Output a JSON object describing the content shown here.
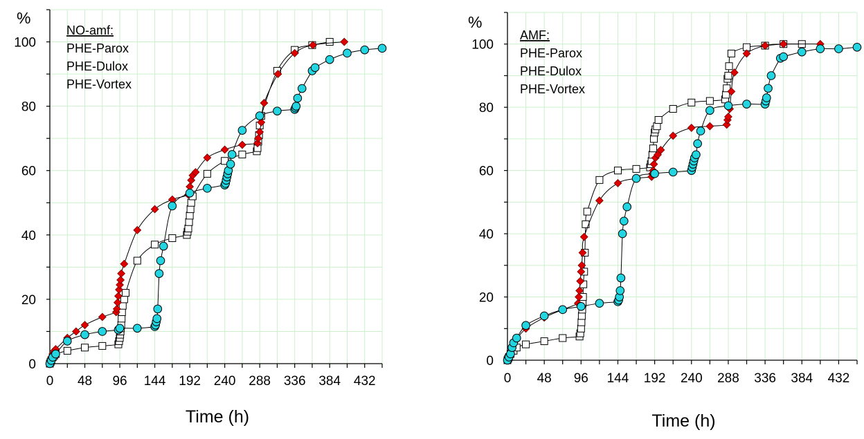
{
  "chart_data": [
    {
      "type": "scatter",
      "title": "",
      "xlabel": "Time (h)",
      "ylabel": "%",
      "xlim": [
        0,
        456
      ],
      "ylim": [
        0,
        110
      ],
      "xticks": [
        0,
        48,
        96,
        144,
        192,
        240,
        288,
        336,
        384,
        432
      ],
      "yticks": [
        0,
        20,
        40,
        60,
        80,
        100
      ],
      "grid": true,
      "grid_color": "#ccf0cc",
      "legend": {
        "placement": "top-left",
        "heading": "NO-amf:",
        "entries": [
          "PHE-Parox",
          "PHE-Dulox",
          "PHE-Vortex"
        ]
      },
      "series": [
        {
          "marker": "open-square",
          "color": "#000000",
          "points": [
            [
              0,
              0
            ],
            [
              1,
              0.5
            ],
            [
              2,
              1
            ],
            [
              4,
              2
            ],
            [
              6,
              2.5
            ],
            [
              8,
              3
            ],
            [
              24,
              4
            ],
            [
              48,
              5
            ],
            [
              72,
              5.5
            ],
            [
              94,
              6
            ],
            [
              95,
              7
            ],
            [
              96,
              8
            ],
            [
              96.5,
              9
            ],
            [
              97,
              10
            ],
            [
              97.5,
              11
            ],
            [
              98,
              12
            ],
            [
              98.5,
              14
            ],
            [
              99,
              16
            ],
            [
              100,
              18
            ],
            [
              102,
              20
            ],
            [
              104,
              22
            ],
            [
              120,
              32
            ],
            [
              144,
              37
            ],
            [
              168,
              39
            ],
            [
              188,
              40
            ],
            [
              189,
              41
            ],
            [
              190,
              42
            ],
            [
              191,
              44
            ],
            [
              192,
              46
            ],
            [
              193,
              48
            ],
            [
              194,
              50
            ],
            [
              196,
              52
            ],
            [
              216,
              59
            ],
            [
              240,
              63
            ],
            [
              264,
              65
            ],
            [
              284,
              66
            ],
            [
              285,
              67
            ],
            [
              286,
              69
            ],
            [
              287,
              71
            ],
            [
              288,
              74
            ],
            [
              290,
              77
            ],
            [
              312,
              91
            ],
            [
              336,
              97.5
            ],
            [
              360,
              99
            ],
            [
              384,
              100
            ]
          ]
        },
        {
          "marker": "diamond",
          "color": "#dd0000",
          "points": [
            [
              0,
              0
            ],
            [
              1,
              1
            ],
            [
              2,
              2
            ],
            [
              4,
              3
            ],
            [
              6,
              4
            ],
            [
              8,
              4.5
            ],
            [
              24,
              8
            ],
            [
              36,
              10
            ],
            [
              48,
              12
            ],
            [
              72,
              14.5
            ],
            [
              91,
              16
            ],
            [
              92,
              17
            ],
            [
              93,
              19
            ],
            [
              94,
              21
            ],
            [
              95,
              23
            ],
            [
              96,
              24.5
            ],
            [
              97,
              26
            ],
            [
              98,
              28
            ],
            [
              102,
              31
            ],
            [
              120,
              41.5
            ],
            [
              144,
              48
            ],
            [
              168,
              51
            ],
            [
              190,
              52.5
            ],
            [
              192,
              55
            ],
            [
              194,
              57
            ],
            [
              196,
              58.5
            ],
            [
              200,
              59.5
            ],
            [
              216,
              64
            ],
            [
              240,
              66.5
            ],
            [
              264,
              68
            ],
            [
              285,
              68.5
            ],
            [
              286,
              70
            ],
            [
              288,
              72
            ],
            [
              290,
              75
            ],
            [
              294,
              81
            ],
            [
              313,
              90
            ],
            [
              336,
              96.5
            ],
            [
              361,
              99
            ],
            [
              404,
              100
            ]
          ]
        },
        {
          "marker": "circle",
          "color": "#22d5e0",
          "points": [
            [
              0,
              0
            ],
            [
              2,
              1
            ],
            [
              4,
              2
            ],
            [
              8,
              3
            ],
            [
              24,
              7
            ],
            [
              48,
              9
            ],
            [
              72,
              10
            ],
            [
              94,
              10.5
            ],
            [
              96,
              11
            ],
            [
              120,
              11
            ],
            [
              144,
              11.5
            ],
            [
              145,
              12
            ],
            [
              146,
              13
            ],
            [
              147,
              14
            ],
            [
              148,
              17
            ],
            [
              150,
              28
            ],
            [
              152,
              32
            ],
            [
              156,
              36.5
            ],
            [
              168,
              49
            ],
            [
              192,
              53
            ],
            [
              216,
              54.5
            ],
            [
              240,
              55.5
            ],
            [
              241,
              56
            ],
            [
              242,
              57
            ],
            [
              243,
              58
            ],
            [
              244,
              59
            ],
            [
              245,
              60
            ],
            [
              248,
              62
            ],
            [
              250,
              65
            ],
            [
              264,
              72.5
            ],
            [
              288,
              77
            ],
            [
              312,
              78.5
            ],
            [
              336,
              79
            ],
            [
              337,
              79.5
            ],
            [
              338,
              80
            ],
            [
              340,
              82.5
            ],
            [
              346,
              85.5
            ],
            [
              360,
              91
            ],
            [
              364,
              92
            ],
            [
              384,
              94.5
            ],
            [
              408,
              96.5
            ],
            [
              432,
              97.5
            ],
            [
              456,
              98
            ]
          ]
        }
      ]
    },
    {
      "type": "scatter",
      "title": "",
      "xlabel": "Time (h)",
      "ylabel": "%",
      "xlim": [
        0,
        456
      ],
      "ylim": [
        0,
        110
      ],
      "xticks": [
        0,
        48,
        96,
        144,
        192,
        240,
        288,
        336,
        384,
        432
      ],
      "yticks": [
        0,
        20,
        40,
        60,
        80,
        100
      ],
      "grid": true,
      "grid_color": "#ccf0cc",
      "legend": {
        "placement": "top-left",
        "heading": "AMF:",
        "entries": [
          "PHE-Parox",
          "PHE-Dulox",
          "PHE-Vortex"
        ]
      },
      "series": [
        {
          "marker": "open-square",
          "color": "#000000",
          "points": [
            [
              0,
              0
            ],
            [
              1,
              0.5
            ],
            [
              2,
              1
            ],
            [
              4,
              2
            ],
            [
              8,
              3
            ],
            [
              12,
              4
            ],
            [
              24,
              5
            ],
            [
              48,
              6
            ],
            [
              72,
              7
            ],
            [
              94,
              7.5
            ],
            [
              95,
              8.5
            ],
            [
              96,
              10
            ],
            [
              96.5,
              12
            ],
            [
              97,
              14
            ],
            [
              97.5,
              16
            ],
            [
              98,
              18
            ],
            [
              98.5,
              20
            ],
            [
              99,
              24
            ],
            [
              100,
              28
            ],
            [
              101,
              34
            ],
            [
              102,
              43
            ],
            [
              104,
              47
            ],
            [
              120,
              57
            ],
            [
              144,
              60
            ],
            [
              168,
              60.5
            ],
            [
              186,
              61
            ],
            [
              187,
              62
            ],
            [
              188,
              63
            ],
            [
              189,
              65
            ],
            [
              190,
              67
            ],
            [
              191,
              70
            ],
            [
              192,
              72
            ],
            [
              193,
              73
            ],
            [
              195,
              74
            ],
            [
              197,
              76
            ],
            [
              216,
              79.5
            ],
            [
              240,
              81.5
            ],
            [
              264,
              82
            ],
            [
              284,
              82.5
            ],
            [
              285,
              84
            ],
            [
              286,
              86
            ],
            [
              287,
              89
            ],
            [
              288,
              90
            ],
            [
              289,
              93
            ],
            [
              292,
              97
            ],
            [
              312,
              99
            ],
            [
              336,
              99.5
            ],
            [
              360,
              100
            ],
            [
              384,
              100
            ]
          ]
        },
        {
          "marker": "diamond",
          "color": "#dd0000",
          "points": [
            [
              0,
              0
            ],
            [
              2,
              1
            ],
            [
              4,
              2
            ],
            [
              6,
              4
            ],
            [
              10,
              6
            ],
            [
              24,
              10
            ],
            [
              48,
              13.5
            ],
            [
              72,
              16
            ],
            [
              92,
              18
            ],
            [
              93,
              20
            ],
            [
              94,
              22
            ],
            [
              95,
              25
            ],
            [
              96,
              28
            ],
            [
              97,
              30
            ],
            [
              98,
              34
            ],
            [
              100,
              39
            ],
            [
              120,
              50.5
            ],
            [
              144,
              56
            ],
            [
              168,
              57.5
            ],
            [
              188,
              58
            ],
            [
              189,
              59
            ],
            [
              190,
              60
            ],
            [
              191,
              62
            ],
            [
              193,
              64
            ],
            [
              196,
              65
            ],
            [
              200,
              66.5
            ],
            [
              216,
              71
            ],
            [
              240,
              73.5
            ],
            [
              264,
              74
            ],
            [
              286,
              74.5
            ],
            [
              287,
              76
            ],
            [
              288,
              77
            ],
            [
              290,
              79.5
            ],
            [
              292,
              85
            ],
            [
              296,
              91
            ],
            [
              312,
              97
            ],
            [
              336,
              99.5
            ],
            [
              360,
              100
            ],
            [
              408,
              100
            ]
          ]
        },
        {
          "marker": "circle",
          "color": "#22d5e0",
          "points": [
            [
              0,
              0
            ],
            [
              2,
              1
            ],
            [
              4,
              2
            ],
            [
              6,
              4
            ],
            [
              8,
              5.5
            ],
            [
              12,
              7
            ],
            [
              24,
              11
            ],
            [
              48,
              14
            ],
            [
              72,
              16
            ],
            [
              96,
              17
            ],
            [
              120,
              18
            ],
            [
              144,
              18.5
            ],
            [
              145,
              19
            ],
            [
              146,
              20
            ],
            [
              147,
              22
            ],
            [
              148,
              26
            ],
            [
              150,
              40
            ],
            [
              152,
              44
            ],
            [
              156,
              48.5
            ],
            [
              168,
              57.5
            ],
            [
              192,
              59
            ],
            [
              216,
              59.5
            ],
            [
              240,
              60
            ],
            [
              241,
              61
            ],
            [
              242,
              62
            ],
            [
              243,
              63
            ],
            [
              244,
              64
            ],
            [
              246,
              65
            ],
            [
              248,
              68.5
            ],
            [
              252,
              72.5
            ],
            [
              264,
              79
            ],
            [
              288,
              80.5
            ],
            [
              312,
              81
            ],
            [
              336,
              81
            ],
            [
              337,
              82
            ],
            [
              338,
              83
            ],
            [
              340,
              86
            ],
            [
              344,
              90
            ],
            [
              356,
              95.5
            ],
            [
              360,
              96
            ],
            [
              384,
              97.5
            ],
            [
              408,
              98.5
            ],
            [
              432,
              98.5
            ],
            [
              456,
              99
            ]
          ]
        }
      ]
    }
  ]
}
